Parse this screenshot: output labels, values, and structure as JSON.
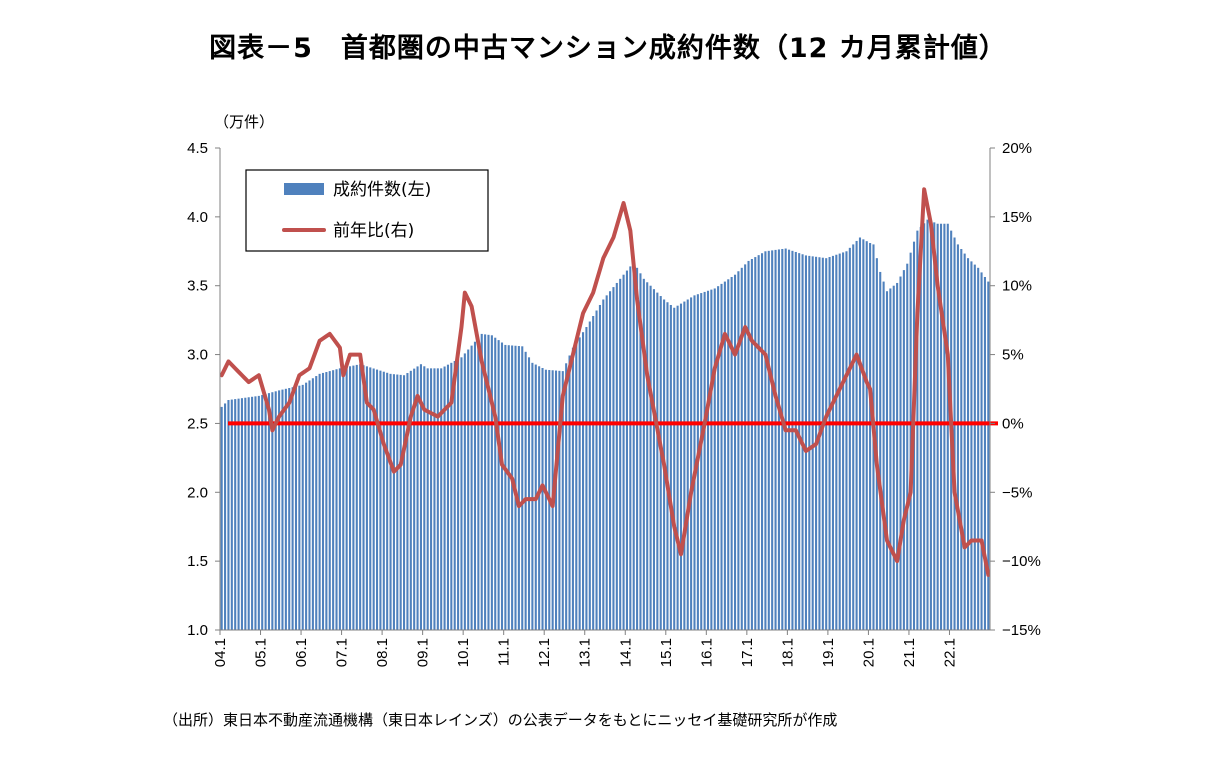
{
  "chart_data": {
    "title": "図表－5　首都圏の中古マンション成約件数（12 カ月累計値）",
    "source": "（出所）東日本不動産流通機構（東日本レインズ）の公表データをもとにニッセイ基礎研究所が作成",
    "type": "bar+line",
    "x_axis": {
      "start": "2004-01",
      "end": "2022-12",
      "tick_labels": [
        "04.1",
        "05.1",
        "06.1",
        "07.1",
        "08.1",
        "09.1",
        "10.1",
        "11.1",
        "12.1",
        "13.1",
        "14.1",
        "15.1",
        "16.1",
        "17.1",
        "18.1",
        "19.1",
        "20.1",
        "21.1",
        "22.1"
      ]
    },
    "y_left": {
      "unit_label": "（万件）",
      "ylim": [
        1.0,
        4.5
      ],
      "tick_labels": [
        "4.5",
        "4.0",
        "3.5",
        "3.0",
        "2.5",
        "2.0",
        "1.5",
        "1.0"
      ]
    },
    "y_right": {
      "ylim": [
        -15,
        20
      ],
      "tick_labels": [
        "20%",
        "15%",
        "10%",
        "5%",
        "0%",
        "−5%",
        "−10%",
        "−15%"
      ]
    },
    "legend": {
      "placement": "top-left",
      "items": [
        {
          "label": "成約件数(左)",
          "color": "#4f81bd"
        },
        {
          "label": "前年比(右)",
          "color": "#c0504d"
        }
      ]
    },
    "reference_line": {
      "axis": "right",
      "value": 0,
      "color": "#ff0000"
    },
    "series": [
      {
        "name": "成約件数(左)",
        "axis": "left",
        "kind": "bar",
        "color": "#4f81bd",
        "keypoints": [
          [
            "2004-01",
            2.62
          ],
          [
            "2004-03",
            2.67
          ],
          [
            "2004-12",
            2.7
          ],
          [
            "2005-06",
            2.74
          ],
          [
            "2006-01",
            2.78
          ],
          [
            "2006-06",
            2.86
          ],
          [
            "2006-12",
            2.9
          ],
          [
            "2007-06",
            2.93
          ],
          [
            "2008-03",
            2.86
          ],
          [
            "2008-07",
            2.85
          ],
          [
            "2008-12",
            2.93
          ],
          [
            "2009-02",
            2.9
          ],
          [
            "2009-06",
            2.9
          ],
          [
            "2009-12",
            2.98
          ],
          [
            "2010-06",
            3.15
          ],
          [
            "2010-09",
            3.14
          ],
          [
            "2011-01",
            3.07
          ],
          [
            "2011-06",
            3.06
          ],
          [
            "2011-09",
            2.94
          ],
          [
            "2012-01",
            2.89
          ],
          [
            "2012-06",
            2.88
          ],
          [
            "2012-09",
            3.05
          ],
          [
            "2013-01",
            3.2
          ],
          [
            "2013-06",
            3.4
          ],
          [
            "2013-12",
            3.58
          ],
          [
            "2014-03",
            3.67
          ],
          [
            "2014-06",
            3.55
          ],
          [
            "2014-12",
            3.4
          ],
          [
            "2015-03",
            3.34
          ],
          [
            "2015-09",
            3.43
          ],
          [
            "2016-03",
            3.48
          ],
          [
            "2016-09",
            3.58
          ],
          [
            "2017-01",
            3.68
          ],
          [
            "2017-06",
            3.75
          ],
          [
            "2017-12",
            3.77
          ],
          [
            "2018-06",
            3.72
          ],
          [
            "2018-12",
            3.7
          ],
          [
            "2019-06",
            3.75
          ],
          [
            "2019-10",
            3.85
          ],
          [
            "2020-01",
            3.81
          ],
          [
            "2020-02",
            3.8
          ],
          [
            "2020-04",
            3.6
          ],
          [
            "2020-06",
            3.46
          ],
          [
            "2020-09",
            3.52
          ],
          [
            "2020-12",
            3.66
          ],
          [
            "2021-03",
            3.9
          ],
          [
            "2021-06",
            3.98
          ],
          [
            "2021-09",
            3.95
          ],
          [
            "2021-12",
            3.95
          ],
          [
            "2022-03",
            3.8
          ],
          [
            "2022-06",
            3.7
          ],
          [
            "2022-09",
            3.63
          ],
          [
            "2022-12",
            3.53
          ]
        ]
      },
      {
        "name": "前年比(右)",
        "axis": "right",
        "kind": "line",
        "color": "#c0504d",
        "keypoints": [
          [
            "2004-01",
            3.5
          ],
          [
            "2004-03",
            4.5
          ],
          [
            "2004-07",
            3.5
          ],
          [
            "2004-09",
            3.0
          ],
          [
            "2004-12",
            3.5
          ],
          [
            "2005-03",
            1.0
          ],
          [
            "2005-04",
            -0.5
          ],
          [
            "2005-06",
            0.5
          ],
          [
            "2005-09",
            1.5
          ],
          [
            "2005-12",
            3.5
          ],
          [
            "2006-03",
            4.0
          ],
          [
            "2006-06",
            6.0
          ],
          [
            "2006-09",
            6.5
          ],
          [
            "2006-12",
            5.5
          ],
          [
            "2007-01",
            3.5
          ],
          [
            "2007-03",
            5.0
          ],
          [
            "2007-06",
            5.0
          ],
          [
            "2007-08",
            1.5
          ],
          [
            "2007-10",
            1.0
          ],
          [
            "2008-01",
            -1.5
          ],
          [
            "2008-04",
            -3.5
          ],
          [
            "2008-06",
            -3.0
          ],
          [
            "2008-09",
            0.5
          ],
          [
            "2008-11",
            2.0
          ],
          [
            "2009-01",
            1.0
          ],
          [
            "2009-05",
            0.5
          ],
          [
            "2009-09",
            1.5
          ],
          [
            "2009-12",
            7.0
          ],
          [
            "2010-01",
            9.5
          ],
          [
            "2010-03",
            8.5
          ],
          [
            "2010-06",
            4.5
          ],
          [
            "2010-10",
            0.5
          ],
          [
            "2010-12",
            -3.0
          ],
          [
            "2011-03",
            -4.0
          ],
          [
            "2011-05",
            -6.0
          ],
          [
            "2011-07",
            -5.5
          ],
          [
            "2011-10",
            -5.5
          ],
          [
            "2011-12",
            -4.5
          ],
          [
            "2012-03",
            -6.0
          ],
          [
            "2012-06",
            2.0
          ],
          [
            "2012-09",
            5.0
          ],
          [
            "2012-12",
            8.0
          ],
          [
            "2013-03",
            9.5
          ],
          [
            "2013-06",
            12.0
          ],
          [
            "2013-09",
            13.5
          ],
          [
            "2013-12",
            16.0
          ],
          [
            "2014-02",
            14.0
          ],
          [
            "2014-04",
            9.0
          ],
          [
            "2014-07",
            3.5
          ],
          [
            "2014-12",
            -3.0
          ],
          [
            "2015-03",
            -7.5
          ],
          [
            "2015-05",
            -9.5
          ],
          [
            "2015-08",
            -5.0
          ],
          [
            "2015-12",
            0.0
          ],
          [
            "2016-03",
            4.0
          ],
          [
            "2016-06",
            6.5
          ],
          [
            "2016-09",
            5.0
          ],
          [
            "2016-12",
            7.0
          ],
          [
            "2017-02",
            6.0
          ],
          [
            "2017-06",
            5.0
          ],
          [
            "2017-09",
            2.0
          ],
          [
            "2017-12",
            -0.5
          ],
          [
            "2018-03",
            -0.5
          ],
          [
            "2018-06",
            -2.0
          ],
          [
            "2018-09",
            -1.5
          ],
          [
            "2018-12",
            0.5
          ],
          [
            "2019-03",
            2.0
          ],
          [
            "2019-06",
            3.5
          ],
          [
            "2019-09",
            5.0
          ],
          [
            "2019-12",
            3.0
          ],
          [
            "2020-01",
            2.5
          ],
          [
            "2020-03",
            -3.0
          ],
          [
            "2020-06",
            -8.5
          ],
          [
            "2020-09",
            -10.0
          ],
          [
            "2020-11",
            -7.0
          ],
          [
            "2021-01",
            -5.0
          ],
          [
            "2021-03",
            8.0
          ],
          [
            "2021-05",
            17.0
          ],
          [
            "2021-07",
            14.5
          ],
          [
            "2021-09",
            10.0
          ],
          [
            "2021-12",
            5.0
          ],
          [
            "2022-02",
            -5.0
          ],
          [
            "2022-05",
            -9.0
          ],
          [
            "2022-07",
            -8.5
          ],
          [
            "2022-10",
            -8.5
          ],
          [
            "2022-12",
            -11.0
          ]
        ]
      }
    ]
  }
}
